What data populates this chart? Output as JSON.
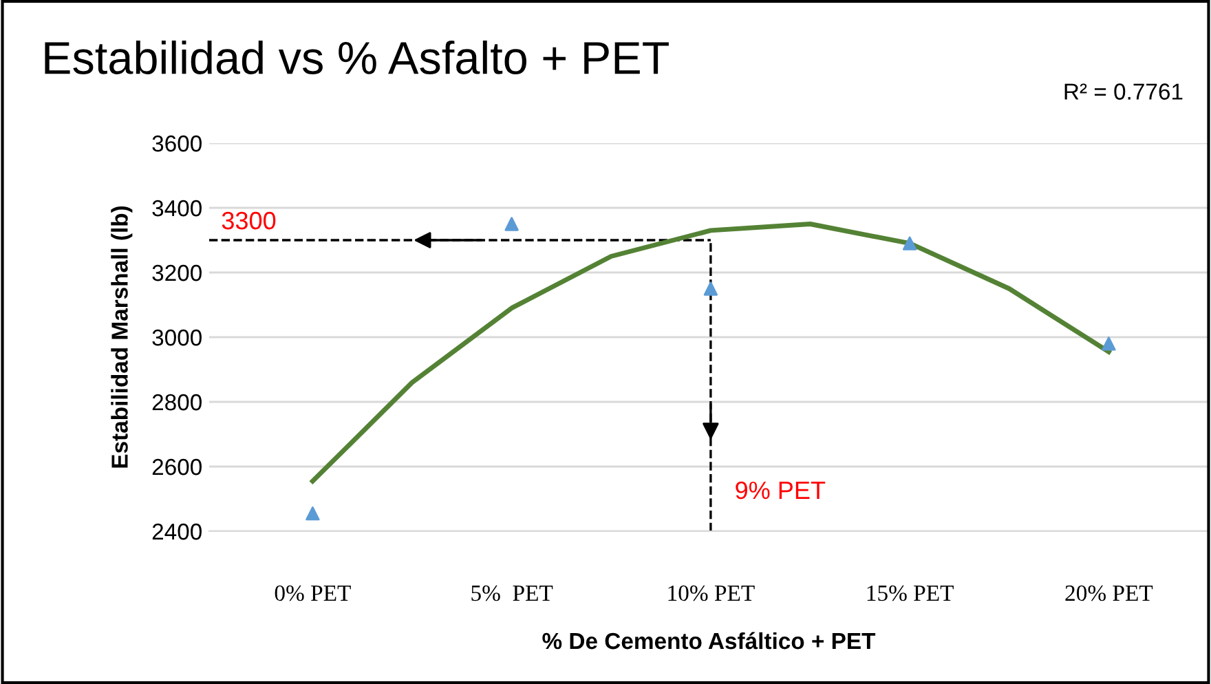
{
  "chart_data": {
    "type": "scatter",
    "title": "Estabilidad vs % Asfalto + PET",
    "xlabel": "% De Cemento Asfáltico + PET",
    "ylabel": "Estabilidad Marshall (lb)",
    "x": [
      0,
      5,
      10,
      15,
      20
    ],
    "series": [
      {
        "color": "#5b9bd5",
        "marker": "triangle",
        "values": [
          2455,
          3350,
          3150,
          3290,
          2980
        ]
      },
      {
        "type": "line",
        "color": "#548235",
        "marker": "none",
        "line_style": "solid",
        "x": [
          0,
          2.5,
          5,
          7.5,
          10,
          12.5,
          15,
          17.5,
          20
        ],
        "values": [
          2555,
          2860,
          3090,
          3250,
          3330,
          3350,
          3290,
          3150,
          2955
        ]
      }
    ],
    "xlim": [
      -2.6,
      22.5
    ],
    "ylim": [
      2400,
      3600
    ],
    "xticks": [
      {
        "value": 0,
        "label": "0% PET"
      },
      {
        "value": 5,
        "label": "5%  PET"
      },
      {
        "value": 10,
        "label": "10% PET"
      },
      {
        "value": 15,
        "label": "15% PET"
      },
      {
        "value": 20,
        "label": "20% PET"
      }
    ],
    "yticks": [
      2400,
      2600,
      2800,
      3000,
      3200,
      3400,
      3600
    ],
    "grid": "y",
    "legend": false,
    "ref_lines": [
      {
        "axis": "y",
        "value": 3300,
        "label": "3300",
        "color": "#000000",
        "line_style": "dashed"
      },
      {
        "axis": "x",
        "value": 10,
        "label": "9% PET",
        "color": "#000000",
        "line_style": "dashed"
      }
    ],
    "annotations": [
      "R² = 0.7761"
    ]
  }
}
